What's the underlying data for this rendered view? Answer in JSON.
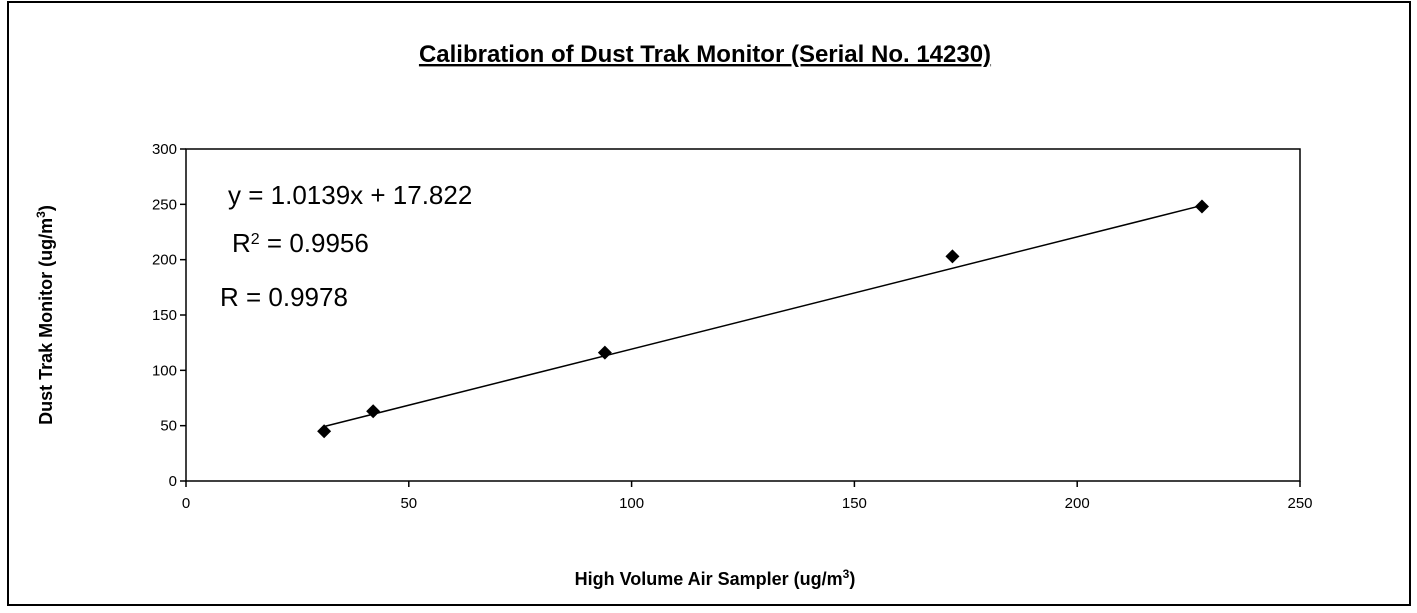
{
  "chart_data": {
    "type": "scatter",
    "title": "Calibration of Dust Trak Monitor (Serial No. 14230)",
    "x_label": {
      "text": "High Volume Air Sampler (ug/m",
      "sup": "3",
      "tail": ")"
    },
    "y_label": {
      "text": "Dust Trak Monitor (ug/m",
      "sup": "3",
      "tail": ")"
    },
    "x": [
      31,
      42,
      94,
      172,
      228
    ],
    "values": [
      45,
      63,
      116,
      203,
      248
    ],
    "color": "#000000",
    "marker": "diamond",
    "trendline": {
      "slope": 1.0139,
      "intercept": 17.822,
      "equation": "y = 1.0139x + 17.822",
      "r2": {
        "text": "R",
        "sup": "2",
        "tail": " = 0.9956"
      },
      "r": "R = 0.9978"
    },
    "xlim": [
      0,
      250
    ],
    "ylim": [
      0,
      300
    ],
    "xticks": [
      0,
      50,
      100,
      150,
      200,
      250
    ],
    "yticks": [
      0,
      50,
      100,
      150,
      200,
      250,
      300
    ],
    "grid": false
  }
}
